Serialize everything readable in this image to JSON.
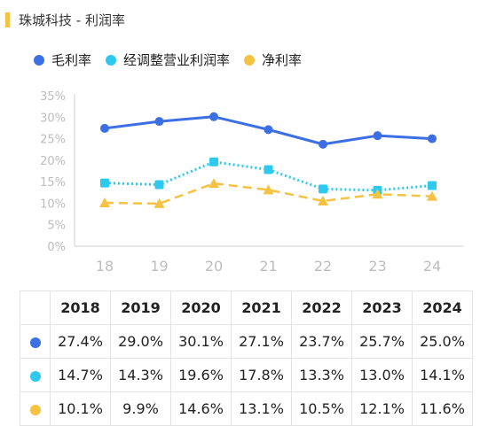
{
  "title": "珠城科技 - 利润率",
  "colors": {
    "accent": "#f5c242"
  },
  "legend": [
    {
      "name": "毛利率",
      "color": "#3b6fe3"
    },
    {
      "name": "经调整营业利润率",
      "color": "#2ec9ef"
    },
    {
      "name": "净利率",
      "color": "#f5c242"
    }
  ],
  "chart_data": {
    "type": "line",
    "title": "珠城科技 - 利润率",
    "categories": [
      "18",
      "19",
      "20",
      "21",
      "22",
      "23",
      "24"
    ],
    "ylim": [
      0,
      35
    ],
    "yticks": [
      "0%",
      "5%",
      "10%",
      "15%",
      "20%",
      "25%",
      "30%",
      "35%"
    ],
    "grid": false,
    "legend_position": "top-left",
    "series": [
      {
        "name": "毛利率",
        "color": "#3b6fe3",
        "style": "solid",
        "marker": "circle",
        "values": [
          27.4,
          29.0,
          30.1,
          27.1,
          23.7,
          25.7,
          25.0
        ]
      },
      {
        "name": "经调整营业利润率",
        "color": "#2ec9ef",
        "style": "dotted",
        "marker": "square",
        "values": [
          14.7,
          14.3,
          19.6,
          17.8,
          13.3,
          13.0,
          14.1
        ]
      },
      {
        "name": "净利率",
        "color": "#f5c242",
        "style": "dashed",
        "marker": "triangle",
        "values": [
          10.1,
          9.9,
          14.6,
          13.1,
          10.5,
          12.1,
          11.6
        ]
      }
    ]
  },
  "table": {
    "headers": [
      "2018",
      "2019",
      "2020",
      "2021",
      "2022",
      "2023",
      "2024"
    ],
    "rows": [
      {
        "color": "#3b6fe3",
        "cells": [
          "27.4%",
          "29.0%",
          "30.1%",
          "27.1%",
          "23.7%",
          "25.7%",
          "25.0%"
        ]
      },
      {
        "color": "#2ec9ef",
        "cells": [
          "14.7%",
          "14.3%",
          "19.6%",
          "17.8%",
          "13.3%",
          "13.0%",
          "14.1%"
        ]
      },
      {
        "color": "#f5c242",
        "cells": [
          "10.1%",
          "9.9%",
          "14.6%",
          "13.1%",
          "10.5%",
          "12.1%",
          "11.6%"
        ]
      }
    ]
  }
}
